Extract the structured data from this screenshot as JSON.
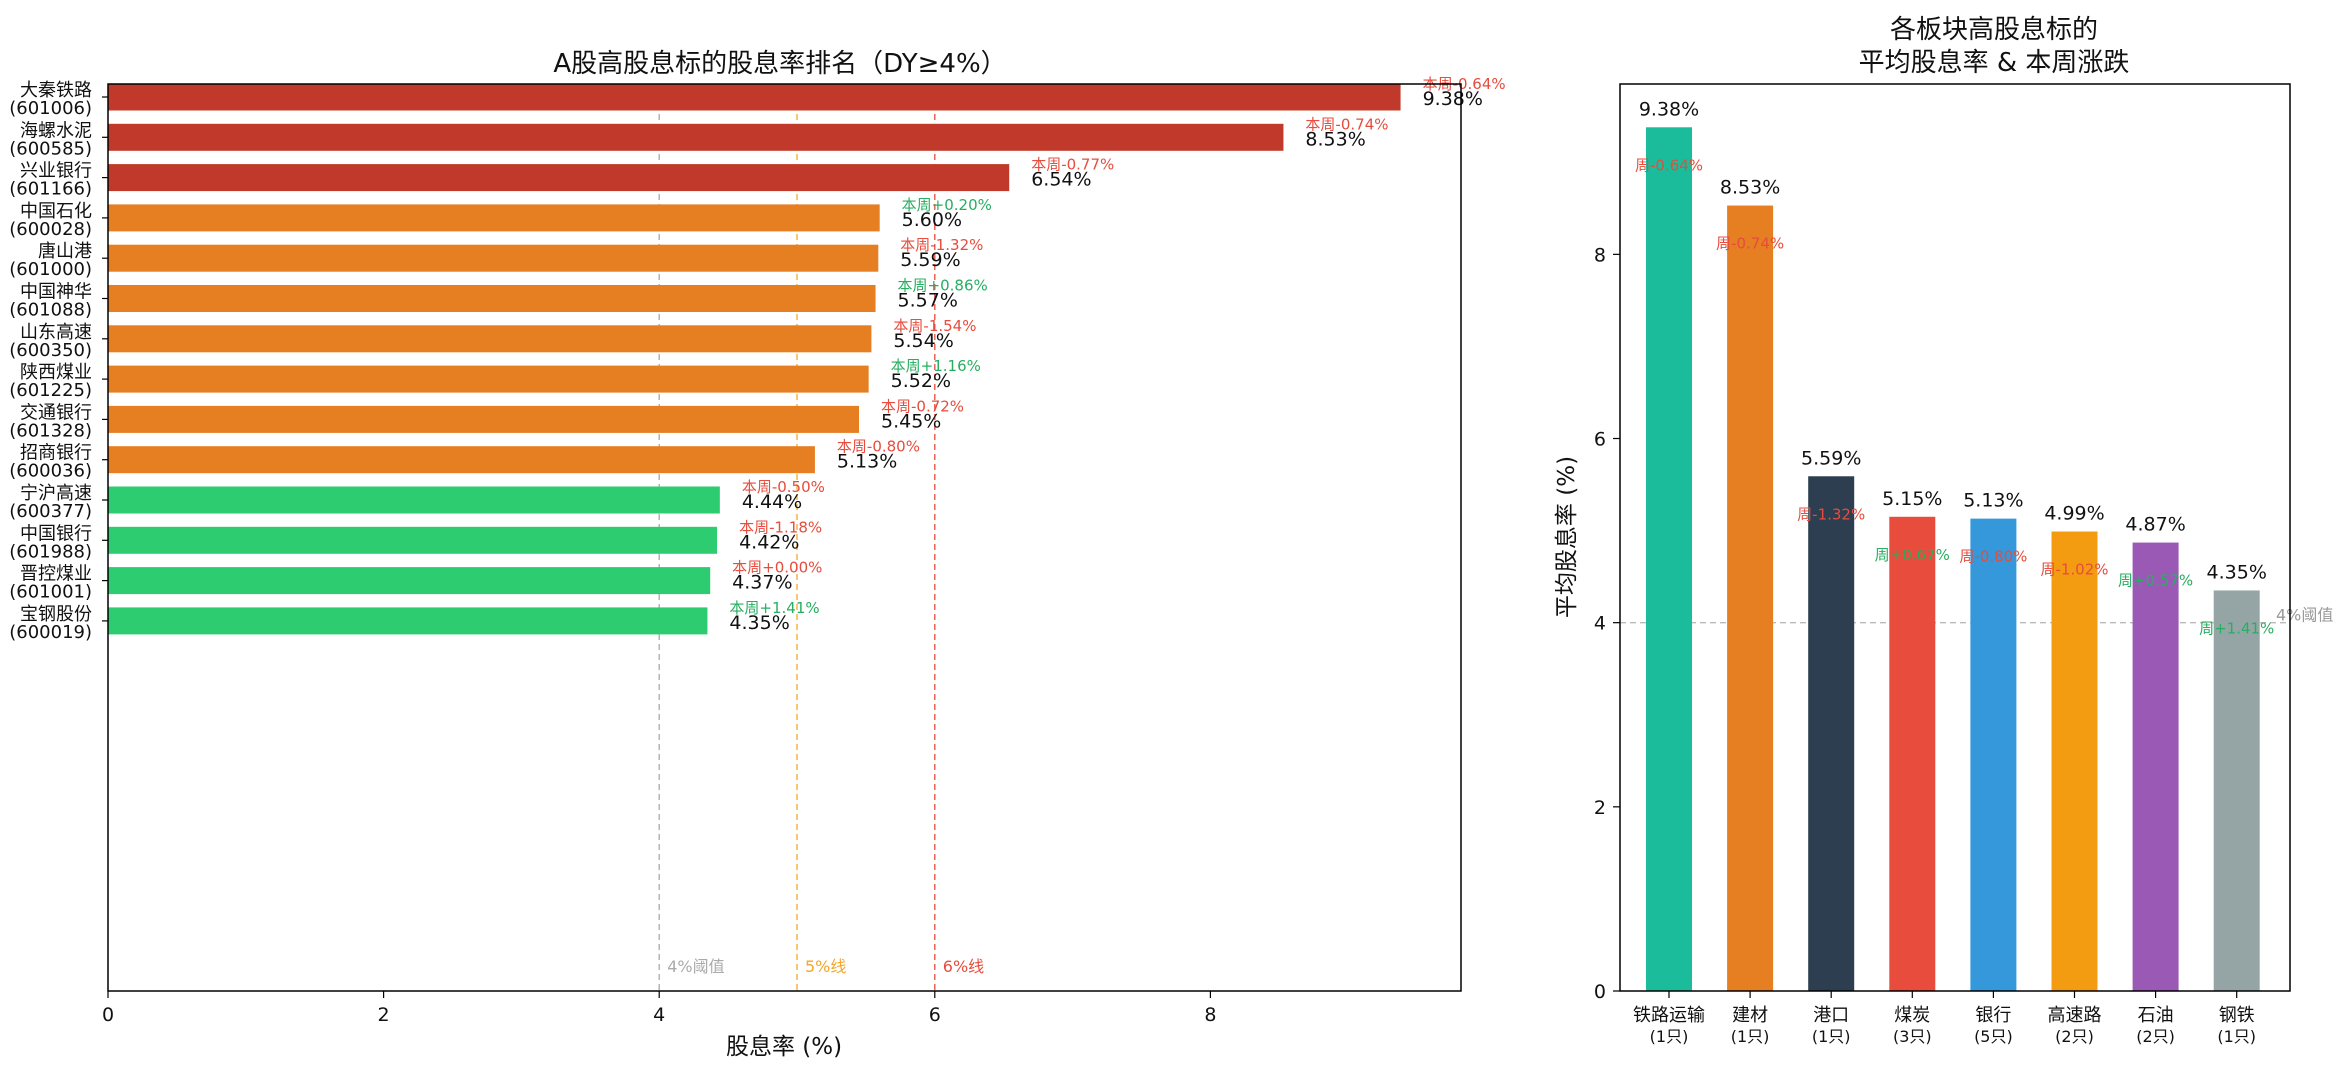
{
  "chart_data": [
    {
      "type": "bar",
      "orientation": "horizontal",
      "title": "A股高股息标的股息率排名（DY≥4%）",
      "xlabel": "股息率 (%)",
      "ylabel": "",
      "xlim": [
        0,
        10
      ],
      "xticks": [
        "0",
        "2",
        "4",
        "6",
        "8"
      ],
      "reference_lines": [
        {
          "value": 4,
          "label": "4%阈值",
          "color": "#aaaaaa"
        },
        {
          "value": 5,
          "label": "5%线",
          "color": "#f5a623"
        },
        {
          "value": 6,
          "label": "6%线",
          "color": "#e74c3c"
        }
      ],
      "colors": {
        "high": "#c0392b",
        "mid": "#e67e22",
        "low": "#2ecc71",
        "up": "#27ae60",
        "down": "#e74c3c"
      },
      "stocks": [
        {
          "name": "大秦铁路",
          "code": "(601006)",
          "value": 9.38,
          "value_label": "9.38%",
          "change": -0.64,
          "change_label": "本周-0.64%",
          "tier": "high"
        },
        {
          "name": "海螺水泥",
          "code": "(600585)",
          "value": 8.53,
          "value_label": "8.53%",
          "change": -0.74,
          "change_label": "本周-0.74%",
          "tier": "high"
        },
        {
          "name": "兴业银行",
          "code": "(601166)",
          "value": 6.54,
          "value_label": "6.54%",
          "change": -0.77,
          "change_label": "本周-0.77%",
          "tier": "high"
        },
        {
          "name": "中国石化",
          "code": "(600028)",
          "value": 5.6,
          "value_label": "5.60%",
          "change": 0.2,
          "change_label": "本周+0.20%",
          "tier": "mid"
        },
        {
          "name": "唐山港",
          "code": "(601000)",
          "value": 5.59,
          "value_label": "5.59%",
          "change": -1.32,
          "change_label": "本周-1.32%",
          "tier": "mid"
        },
        {
          "name": "中国神华",
          "code": "(601088)",
          "value": 5.57,
          "value_label": "5.57%",
          "change": 0.86,
          "change_label": "本周+0.86%",
          "tier": "mid"
        },
        {
          "name": "山东高速",
          "code": "(600350)",
          "value": 5.54,
          "value_label": "5.54%",
          "change": -1.54,
          "change_label": "本周-1.54%",
          "tier": "mid"
        },
        {
          "name": "陕西煤业",
          "code": "(601225)",
          "value": 5.52,
          "value_label": "5.52%",
          "change": 1.16,
          "change_label": "本周+1.16%",
          "tier": "mid"
        },
        {
          "name": "交通银行",
          "code": "(601328)",
          "value": 5.45,
          "value_label": "5.45%",
          "change": -0.72,
          "change_label": "本周-0.72%",
          "tier": "mid"
        },
        {
          "name": "招商银行",
          "code": "(600036)",
          "value": 5.13,
          "value_label": "5.13%",
          "change": -0.8,
          "change_label": "本周-0.80%",
          "tier": "mid"
        },
        {
          "name": "宁沪高速",
          "code": "(600377)",
          "value": 4.44,
          "value_label": "4.44%",
          "change": -0.5,
          "change_label": "本周-0.50%",
          "tier": "low"
        },
        {
          "name": "中国银行",
          "code": "(601988)",
          "value": 4.42,
          "value_label": "4.42%",
          "change": -1.18,
          "change_label": "本周-1.18%",
          "tier": "low"
        },
        {
          "name": "晋控煤业",
          "code": "(601001)",
          "value": 4.37,
          "value_label": "4.37%",
          "change": 0.0,
          "change_label": "本周+0.00%",
          "tier": "low"
        },
        {
          "name": "宝钢股份",
          "code": "(600019)",
          "value": 4.35,
          "value_label": "4.35%",
          "change": 1.41,
          "change_label": "本周+1.41%",
          "tier": "low"
        }
      ]
    },
    {
      "type": "bar",
      "orientation": "vertical",
      "title_line1": "各板块高股息标的",
      "title_line2": "平均股息率 & 本周涨跌",
      "xlabel": "",
      "ylabel": "平均股息率 (%)",
      "ylim": [
        0,
        9.85
      ],
      "yticks": [
        "0",
        "2",
        "4",
        "6",
        "8"
      ],
      "reference_line": {
        "value": 4,
        "label": "4%阈值",
        "color": "#bbbbbb"
      },
      "sectors": [
        {
          "name": "铁路运输",
          "count": "(1只)",
          "value": 9.38,
          "value_label": "9.38%",
          "change": -0.64,
          "change_label": "周-0.64%",
          "color": "#1abc9c"
        },
        {
          "name": "建材",
          "count": "(1只)",
          "value": 8.53,
          "value_label": "8.53%",
          "change": -0.74,
          "change_label": "周-0.74%",
          "color": "#e67e22"
        },
        {
          "name": "港口",
          "count": "(1只)",
          "value": 5.59,
          "value_label": "5.59%",
          "change": -1.32,
          "change_label": "周-1.32%",
          "color": "#2c3e50"
        },
        {
          "name": "煤炭",
          "count": "(3只)",
          "value": 5.15,
          "value_label": "5.15%",
          "change": 0.67,
          "change_label": "周+0.67%",
          "color": "#e74c3c"
        },
        {
          "name": "银行",
          "count": "(5只)",
          "value": 5.13,
          "value_label": "5.13%",
          "change": -0.8,
          "change_label": "周-0.80%",
          "color": "#3498db"
        },
        {
          "name": "高速路",
          "count": "(2只)",
          "value": 4.99,
          "value_label": "4.99%",
          "change": -1.02,
          "change_label": "周-1.02%",
          "color": "#f39c12"
        },
        {
          "name": "石油",
          "count": "(2只)",
          "value": 4.87,
          "value_label": "4.87%",
          "change": 0.57,
          "change_label": "周+0.57%",
          "color": "#9b59b6"
        },
        {
          "name": "钢铁",
          "count": "(1只)",
          "value": 4.35,
          "value_label": "4.35%",
          "change": 1.41,
          "change_label": "周+1.41%",
          "color": "#95a5a6"
        }
      ]
    }
  ]
}
